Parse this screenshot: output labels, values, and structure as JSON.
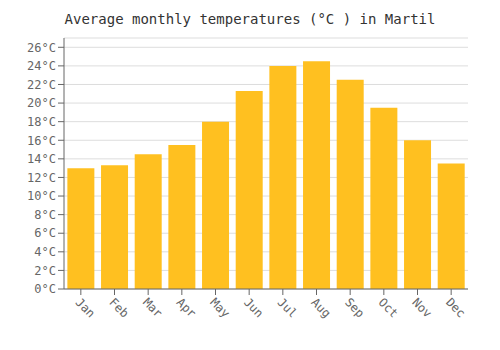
{
  "chart_data": {
    "type": "bar",
    "title": "Average monthly temperatures (°C ) in Martil",
    "categories": [
      "Jan",
      "Feb",
      "Mar",
      "Apr",
      "May",
      "Jun",
      "Jul",
      "Aug",
      "Sep",
      "Oct",
      "Nov",
      "Dec"
    ],
    "values": [
      13.0,
      13.3,
      14.5,
      15.5,
      18.0,
      21.3,
      24.0,
      24.5,
      22.5,
      19.5,
      16.0,
      13.5
    ],
    "color": "#FFC020",
    "ylim": [
      0,
      27
    ],
    "yticks": [
      {
        "value": 0,
        "label": "0°C"
      },
      {
        "value": 2,
        "label": "2°C"
      },
      {
        "value": 4,
        "label": "4°C"
      },
      {
        "value": 6,
        "label": "6°C"
      },
      {
        "value": 8,
        "label": "8°C"
      },
      {
        "value": 10,
        "label": "10°C"
      },
      {
        "value": 12,
        "label": "12°C"
      },
      {
        "value": 14,
        "label": "14°C"
      },
      {
        "value": 16,
        "label": "16°C"
      },
      {
        "value": 18,
        "label": "18°C"
      },
      {
        "value": 20,
        "label": "20°C"
      },
      {
        "value": 22,
        "label": "22°C"
      },
      {
        "value": 24,
        "label": "24°C"
      },
      {
        "value": 26,
        "label": "26°C"
      }
    ],
    "grid": true
  }
}
